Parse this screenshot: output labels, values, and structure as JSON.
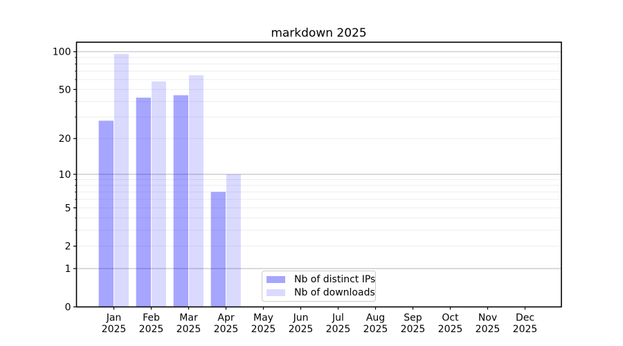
{
  "chart_data": {
    "type": "bar",
    "title": "markdown 2025",
    "categories": [
      "Jan",
      "Feb",
      "Mar",
      "Apr",
      "May",
      "Jun",
      "Jul",
      "Aug",
      "Sep",
      "Oct",
      "Nov",
      "Dec"
    ],
    "year": "2025",
    "series": [
      {
        "name": "Nb of distinct IPs",
        "fill": "#0000ff",
        "opacity": 0.35,
        "solid_color": "#a6a6fa",
        "values": [
          28,
          43,
          45,
          7,
          0,
          0,
          0,
          0,
          0,
          0,
          0,
          0
        ]
      },
      {
        "name": "Nb of downloads",
        "fill": "#0000ff",
        "opacity": 0.145,
        "solid_color": "#dadafc",
        "values": [
          96,
          58,
          65,
          10,
          0,
          0,
          0,
          0,
          0,
          0,
          0,
          0
        ]
      }
    ],
    "y_axis": {
      "scale": "log1p",
      "ticks": [
        100,
        50,
        20,
        10,
        5,
        2,
        1,
        0
      ],
      "major_gridlines": [
        1,
        10,
        100
      ],
      "minor_gridlines": [
        2,
        3,
        4,
        6,
        7,
        8,
        9,
        5,
        20,
        30,
        40,
        50,
        60,
        70,
        80,
        90
      ],
      "ylim": [
        0,
        119
      ]
    },
    "grid": true,
    "legend": {
      "position": "lower center"
    }
  },
  "colors": {
    "axis": "#000000",
    "major_grid": "#c4c4c4",
    "minor_grid": "#ededed",
    "legend_border": "#c9c9c9",
    "background": "#ffffff"
  }
}
